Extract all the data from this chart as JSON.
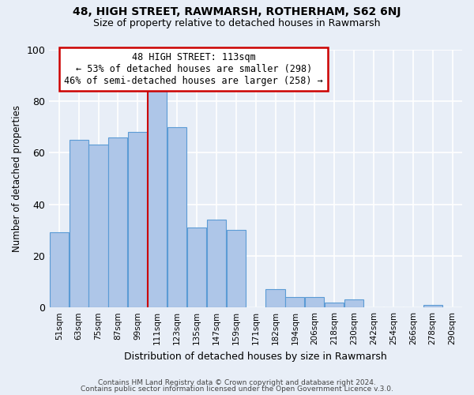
{
  "title": "48, HIGH STREET, RAWMARSH, ROTHERHAM, S62 6NJ",
  "subtitle": "Size of property relative to detached houses in Rawmarsh",
  "xlabel": "Distribution of detached houses by size in Rawmarsh",
  "ylabel": "Number of detached properties",
  "bar_labels": [
    "51sqm",
    "63sqm",
    "75sqm",
    "87sqm",
    "99sqm",
    "111sqm",
    "123sqm",
    "135sqm",
    "147sqm",
    "159sqm",
    "171sqm",
    "182sqm",
    "194sqm",
    "206sqm",
    "218sqm",
    "230sqm",
    "242sqm",
    "254sqm",
    "266sqm",
    "278sqm",
    "290sqm"
  ],
  "bar_values": [
    29,
    65,
    63,
    66,
    68,
    84,
    70,
    31,
    34,
    30,
    0,
    7,
    4,
    4,
    2,
    3,
    0,
    0,
    0,
    1,
    0
  ],
  "bar_color": "#aec6e8",
  "bar_edge_color": "#5b9bd5",
  "bg_color": "#e8eef7",
  "grid_color": "#ffffff",
  "property_line_x": 5,
  "property_label": "48 HIGH STREET: 113sqm",
  "annotation_line1": "← 53% of detached houses are smaller (298)",
  "annotation_line2": "46% of semi-detached houses are larger (258) →",
  "annotation_box_color": "#ffffff",
  "annotation_box_edge_color": "#cc0000",
  "vline_color": "#cc0000",
  "ylim": [
    0,
    100
  ],
  "yticks": [
    0,
    20,
    40,
    60,
    80,
    100
  ],
  "footer1": "Contains HM Land Registry data © Crown copyright and database right 2024.",
  "footer2": "Contains public sector information licensed under the Open Government Licence v.3.0."
}
